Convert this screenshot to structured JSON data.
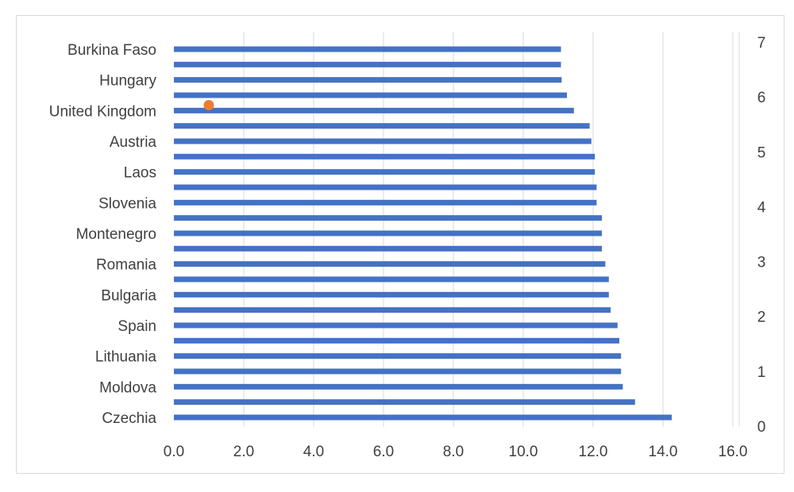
{
  "chart_data": {
    "type": "bar",
    "orientation": "horizontal",
    "categories": [
      "Czechia",
      "",
      "Moldova",
      "",
      "Lithuania",
      "",
      "Spain",
      "",
      "Bulgaria",
      "",
      "Romania",
      "",
      "Montenegro",
      "",
      "Slovenia",
      "",
      "Laos",
      "",
      "Austria",
      "",
      "United Kingdom",
      "",
      "Hungary",
      "",
      "Burkina Faso"
    ],
    "series": [
      {
        "values": [
          14.25,
          13.2,
          12.85,
          12.8,
          12.8,
          12.75,
          12.7,
          12.5,
          12.45,
          12.45,
          12.35,
          12.25,
          12.25,
          12.25,
          12.1,
          12.1,
          12.05,
          12.05,
          11.95,
          11.9,
          11.45,
          11.25,
          11.1,
          11.08,
          11.08
        ],
        "color": "#4472c4"
      }
    ],
    "secondary_series": {
      "type": "scatter",
      "color": "#ed7d31",
      "points": [
        {
          "x": 1.0,
          "y": 5.85
        }
      ]
    },
    "xlim": [
      0,
      16
    ],
    "x_ticks": [
      "0.0",
      "2.0",
      "4.0",
      "6.0",
      "8.0",
      "10.0",
      "12.0",
      "14.0",
      "16.0"
    ],
    "x_tick_values": [
      0,
      2,
      4,
      6,
      8,
      10,
      12,
      14,
      16
    ],
    "y2lim": [
      0,
      7
    ],
    "y2_ticks": [
      "0",
      "1",
      "2",
      "3",
      "4",
      "5",
      "6",
      "7"
    ],
    "y2_tick_values": [
      0,
      1,
      2,
      3,
      4,
      5,
      6,
      7
    ],
    "grid": "vertical",
    "title": "",
    "xlabel": "",
    "ylabel": ""
  }
}
